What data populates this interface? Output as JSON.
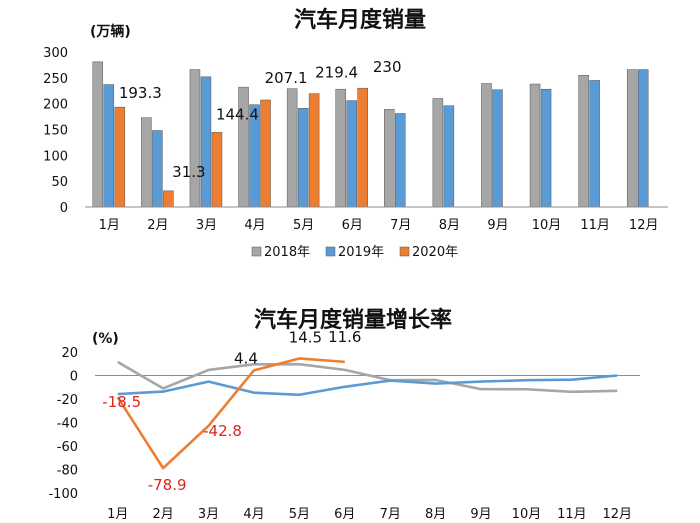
{
  "chart_data": [
    {
      "type": "bar",
      "title": "汽车月度销量",
      "unit_label": "(万辆)",
      "categories": [
        "1月",
        "2月",
        "3月",
        "4月",
        "5月",
        "6月",
        "7月",
        "8月",
        "9月",
        "10月",
        "11月",
        "12月"
      ],
      "ylim": [
        0,
        300
      ],
      "yticks": [
        0,
        50,
        100,
        150,
        200,
        250,
        300
      ],
      "grid": false,
      "legend_position": "bottom",
      "series": [
        {
          "name": "2018年",
          "color": "#a6a6a6",
          "values": [
            281,
            173,
            266,
            232,
            229,
            228,
            189,
            210,
            239,
            238,
            255,
            266
          ]
        },
        {
          "name": "2019年",
          "color": "#5b9bd5",
          "values": [
            237,
            148,
            252,
            198,
            191,
            206,
            181,
            196,
            227,
            228,
            245,
            266
          ]
        },
        {
          "name": "2020年",
          "color": "#ed7d31",
          "values": [
            193.3,
            31.3,
            144.4,
            207.1,
            219.4,
            230,
            null,
            null,
            null,
            null,
            null,
            null
          ]
        }
      ],
      "data_labels": [
        "193.3",
        "31.3",
        "144.4",
        "207.1",
        "219.4",
        "230"
      ]
    },
    {
      "type": "line",
      "title": "汽车月度销量增长率",
      "unit_label": "(%)",
      "categories": [
        "1月",
        "2月",
        "3月",
        "4月",
        "5月",
        "6月",
        "7月",
        "8月",
        "9月",
        "10月",
        "11月",
        "12月"
      ],
      "ylim": [
        -100,
        20
      ],
      "yticks": [
        -100,
        -80,
        -60,
        -40,
        -20,
        0,
        20
      ],
      "grid": false,
      "series": [
        {
          "name": "2018年",
          "color": "#a6a6a6",
          "values": [
            11.5,
            -11,
            4.7,
            9.5,
            9.6,
            4.8,
            -4,
            -3.8,
            -11.6,
            -11.7,
            -13.9,
            -13
          ]
        },
        {
          "name": "2019年",
          "color": "#5b9bd5",
          "values": [
            -15.8,
            -13.7,
            -5.2,
            -14.6,
            -16.4,
            -9.6,
            -4.3,
            -6.9,
            -5.2,
            -4,
            -3.6,
            0
          ]
        },
        {
          "name": "2020年",
          "color": "#ed7d31",
          "values": [
            -18.5,
            -78.9,
            -42.8,
            4.4,
            14.5,
            11.6,
            null,
            null,
            null,
            null,
            null,
            null
          ]
        }
      ],
      "data_labels": [
        "-18.5",
        "-78.9",
        "-42.8",
        "4.4",
        "14.5",
        "11.6"
      ]
    }
  ]
}
